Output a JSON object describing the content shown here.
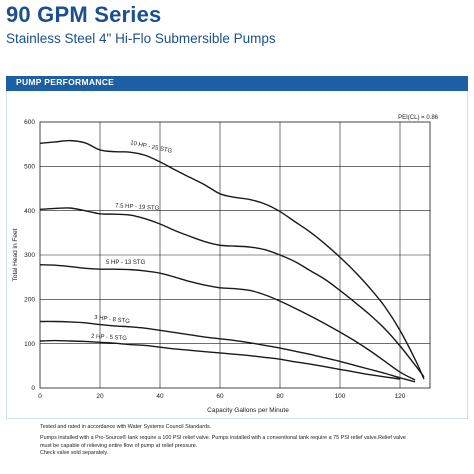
{
  "header": {
    "title": "90 GPM Series",
    "subtitle": "Stainless Steel 4\" Hi-Flo Submersible Pumps"
  },
  "banner": {
    "label": "PUMP PERFORMANCE",
    "color": "#1d5fa4"
  },
  "notes": {
    "line1": "Tested and rated in accordance with Water Systems Council Standards.",
    "line2": "Pumps installed with a Pro-Source® tank require a 100 PSI relief valve. Pumps installed with a conventional tank require a 75 PSI relief valve.Relief valve",
    "line3": "must be capable of relieving entire flow of pump at relief pressure.",
    "line4": "Check valve sold separately."
  },
  "chart_data": {
    "type": "line",
    "xlabel": "Capacity Gallons per Minute",
    "ylabel": "Total Head in Feet",
    "xlim": [
      0,
      130
    ],
    "ylim": [
      0,
      600
    ],
    "xticks": [
      0,
      20,
      40,
      60,
      80,
      100,
      120
    ],
    "yticks": [
      0,
      100,
      200,
      300,
      400,
      500,
      600
    ],
    "grid": true,
    "annotation": "PEI(CL) = 0.86",
    "line_color": "#1a1a1a",
    "series": [
      {
        "name": "10 HP - 25 STG",
        "x": [
          0,
          5,
          10,
          15,
          20,
          25,
          30,
          35,
          40,
          45,
          50,
          55,
          60,
          65,
          70,
          75,
          80,
          85,
          90,
          95,
          100,
          105,
          110,
          115,
          120,
          125,
          128
        ],
        "y": [
          552,
          555,
          558,
          553,
          537,
          533,
          532,
          525,
          510,
          492,
          475,
          458,
          438,
          430,
          425,
          415,
          398,
          375,
          352,
          325,
          295,
          262,
          225,
          183,
          130,
          65,
          20
        ]
      },
      {
        "name": "7.5 HP - 19 STG",
        "x": [
          0,
          5,
          10,
          15,
          20,
          25,
          30,
          35,
          40,
          45,
          50,
          55,
          60,
          65,
          70,
          75,
          80,
          85,
          90,
          95,
          100,
          105,
          110,
          115,
          120,
          125,
          128
        ],
        "y": [
          403,
          405,
          406,
          400,
          393,
          392,
          390,
          382,
          370,
          355,
          342,
          330,
          322,
          320,
          318,
          312,
          300,
          285,
          265,
          245,
          220,
          193,
          165,
          133,
          95,
          52,
          25
        ]
      },
      {
        "name": "5 HP - 13 STG",
        "x": [
          0,
          5,
          10,
          15,
          20,
          25,
          30,
          35,
          40,
          45,
          50,
          55,
          60,
          65,
          70,
          75,
          80,
          85,
          90,
          95,
          100,
          105,
          110,
          115,
          120,
          125
        ],
        "y": [
          278,
          277,
          274,
          270,
          268,
          268,
          267,
          264,
          259,
          250,
          240,
          232,
          226,
          224,
          220,
          210,
          196,
          180,
          163,
          145,
          126,
          106,
          84,
          60,
          36,
          18
        ]
      },
      {
        "name": "3 HP - 8 STG",
        "x": [
          0,
          5,
          10,
          15,
          20,
          25,
          30,
          35,
          40,
          45,
          50,
          55,
          60,
          65,
          70,
          75,
          80,
          85,
          90,
          95,
          100,
          105,
          110,
          115,
          120,
          125
        ],
        "y": [
          150,
          150,
          149,
          147,
          143,
          140,
          138,
          135,
          130,
          125,
          120,
          115,
          111,
          107,
          102,
          96,
          90,
          83,
          76,
          68,
          60,
          51,
          42,
          33,
          23,
          14
        ]
      },
      {
        "name": "2 HP - 5 STG",
        "x": [
          0,
          5,
          10,
          15,
          20,
          25,
          30,
          35,
          40,
          45,
          50,
          55,
          60,
          65,
          70,
          75,
          80,
          85,
          90,
          95,
          100,
          105,
          110,
          115,
          120
        ],
        "y": [
          106,
          107,
          106,
          105,
          103,
          101,
          98,
          96,
          92,
          88,
          85,
          82,
          79,
          76,
          73,
          69,
          65,
          59,
          54,
          48,
          42,
          36,
          30,
          25,
          20
        ]
      }
    ]
  }
}
